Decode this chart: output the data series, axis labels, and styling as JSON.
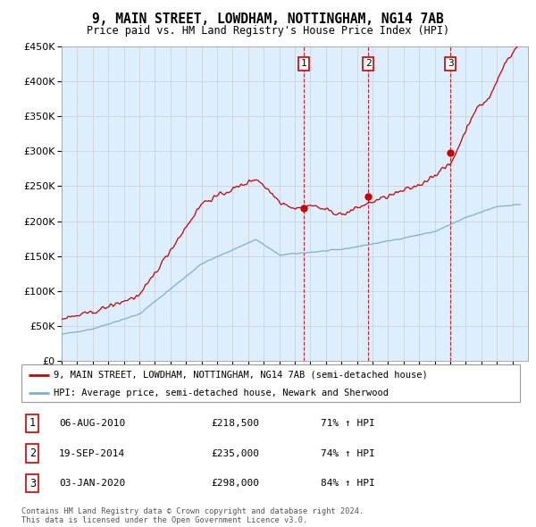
{
  "title": "9, MAIN STREET, LOWDHAM, NOTTINGHAM, NG14 7AB",
  "subtitle": "Price paid vs. HM Land Registry's House Price Index (HPI)",
  "ylim": [
    0,
    450000
  ],
  "xlim_start": 1995.0,
  "xlim_end": 2025.0,
  "red_line_color": "#cc0000",
  "blue_line_color": "#7bafd4",
  "background_color": "#ddeeff",
  "grid_color": "#cccccc",
  "sales": [
    {
      "label": "1",
      "date_str": "06-AUG-2010",
      "price": 218500,
      "pct": "71%",
      "year": 2010.58
    },
    {
      "label": "2",
      "date_str": "19-SEP-2014",
      "price": 235000,
      "pct": "74%",
      "year": 2014.72
    },
    {
      "label": "3",
      "date_str": "03-JAN-2020",
      "price": 298000,
      "pct": "84%",
      "year": 2020.01
    }
  ],
  "legend_label_red": "9, MAIN STREET, LOWDHAM, NOTTINGHAM, NG14 7AB (semi-detached house)",
  "legend_label_blue": "HPI: Average price, semi-detached house, Newark and Sherwood",
  "footer1": "Contains HM Land Registry data © Crown copyright and database right 2024.",
  "footer2": "This data is licensed under the Open Government Licence v3.0."
}
